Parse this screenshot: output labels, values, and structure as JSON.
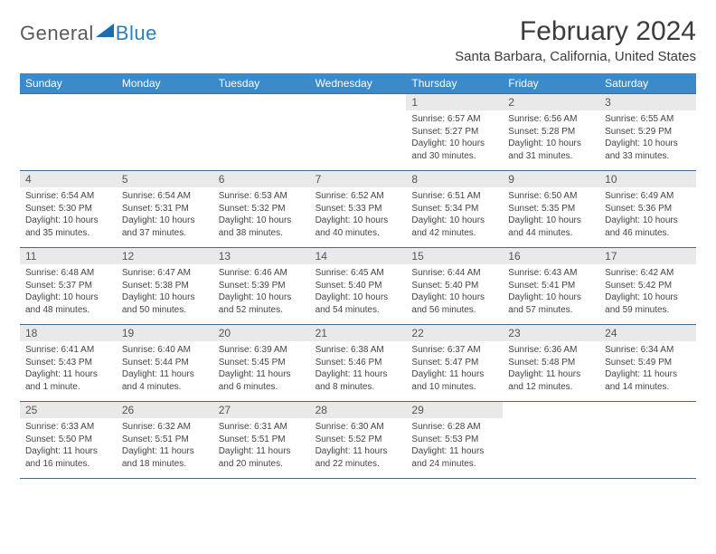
{
  "logo": {
    "part1": "General",
    "part2": "Blue"
  },
  "title": "February 2024",
  "location": "Santa Barbara, California, United States",
  "header_bg": "#3b8bca",
  "daynum_bg": "#e9e9e9",
  "border_color": "#4a6a88",
  "day_names": [
    "Sunday",
    "Monday",
    "Tuesday",
    "Wednesday",
    "Thursday",
    "Friday",
    "Saturday"
  ],
  "weeks": [
    [
      {
        "n": "",
        "sr": "",
        "ss": "",
        "dl": ""
      },
      {
        "n": "",
        "sr": "",
        "ss": "",
        "dl": ""
      },
      {
        "n": "",
        "sr": "",
        "ss": "",
        "dl": ""
      },
      {
        "n": "",
        "sr": "",
        "ss": "",
        "dl": ""
      },
      {
        "n": "1",
        "sr": "Sunrise: 6:57 AM",
        "ss": "Sunset: 5:27 PM",
        "dl": "Daylight: 10 hours and 30 minutes."
      },
      {
        "n": "2",
        "sr": "Sunrise: 6:56 AM",
        "ss": "Sunset: 5:28 PM",
        "dl": "Daylight: 10 hours and 31 minutes."
      },
      {
        "n": "3",
        "sr": "Sunrise: 6:55 AM",
        "ss": "Sunset: 5:29 PM",
        "dl": "Daylight: 10 hours and 33 minutes."
      }
    ],
    [
      {
        "n": "4",
        "sr": "Sunrise: 6:54 AM",
        "ss": "Sunset: 5:30 PM",
        "dl": "Daylight: 10 hours and 35 minutes."
      },
      {
        "n": "5",
        "sr": "Sunrise: 6:54 AM",
        "ss": "Sunset: 5:31 PM",
        "dl": "Daylight: 10 hours and 37 minutes."
      },
      {
        "n": "6",
        "sr": "Sunrise: 6:53 AM",
        "ss": "Sunset: 5:32 PM",
        "dl": "Daylight: 10 hours and 38 minutes."
      },
      {
        "n": "7",
        "sr": "Sunrise: 6:52 AM",
        "ss": "Sunset: 5:33 PM",
        "dl": "Daylight: 10 hours and 40 minutes."
      },
      {
        "n": "8",
        "sr": "Sunrise: 6:51 AM",
        "ss": "Sunset: 5:34 PM",
        "dl": "Daylight: 10 hours and 42 minutes."
      },
      {
        "n": "9",
        "sr": "Sunrise: 6:50 AM",
        "ss": "Sunset: 5:35 PM",
        "dl": "Daylight: 10 hours and 44 minutes."
      },
      {
        "n": "10",
        "sr": "Sunrise: 6:49 AM",
        "ss": "Sunset: 5:36 PM",
        "dl": "Daylight: 10 hours and 46 minutes."
      }
    ],
    [
      {
        "n": "11",
        "sr": "Sunrise: 6:48 AM",
        "ss": "Sunset: 5:37 PM",
        "dl": "Daylight: 10 hours and 48 minutes."
      },
      {
        "n": "12",
        "sr": "Sunrise: 6:47 AM",
        "ss": "Sunset: 5:38 PM",
        "dl": "Daylight: 10 hours and 50 minutes."
      },
      {
        "n": "13",
        "sr": "Sunrise: 6:46 AM",
        "ss": "Sunset: 5:39 PM",
        "dl": "Daylight: 10 hours and 52 minutes."
      },
      {
        "n": "14",
        "sr": "Sunrise: 6:45 AM",
        "ss": "Sunset: 5:40 PM",
        "dl": "Daylight: 10 hours and 54 minutes."
      },
      {
        "n": "15",
        "sr": "Sunrise: 6:44 AM",
        "ss": "Sunset: 5:40 PM",
        "dl": "Daylight: 10 hours and 56 minutes."
      },
      {
        "n": "16",
        "sr": "Sunrise: 6:43 AM",
        "ss": "Sunset: 5:41 PM",
        "dl": "Daylight: 10 hours and 57 minutes."
      },
      {
        "n": "17",
        "sr": "Sunrise: 6:42 AM",
        "ss": "Sunset: 5:42 PM",
        "dl": "Daylight: 10 hours and 59 minutes."
      }
    ],
    [
      {
        "n": "18",
        "sr": "Sunrise: 6:41 AM",
        "ss": "Sunset: 5:43 PM",
        "dl": "Daylight: 11 hours and 1 minute."
      },
      {
        "n": "19",
        "sr": "Sunrise: 6:40 AM",
        "ss": "Sunset: 5:44 PM",
        "dl": "Daylight: 11 hours and 4 minutes."
      },
      {
        "n": "20",
        "sr": "Sunrise: 6:39 AM",
        "ss": "Sunset: 5:45 PM",
        "dl": "Daylight: 11 hours and 6 minutes."
      },
      {
        "n": "21",
        "sr": "Sunrise: 6:38 AM",
        "ss": "Sunset: 5:46 PM",
        "dl": "Daylight: 11 hours and 8 minutes."
      },
      {
        "n": "22",
        "sr": "Sunrise: 6:37 AM",
        "ss": "Sunset: 5:47 PM",
        "dl": "Daylight: 11 hours and 10 minutes."
      },
      {
        "n": "23",
        "sr": "Sunrise: 6:36 AM",
        "ss": "Sunset: 5:48 PM",
        "dl": "Daylight: 11 hours and 12 minutes."
      },
      {
        "n": "24",
        "sr": "Sunrise: 6:34 AM",
        "ss": "Sunset: 5:49 PM",
        "dl": "Daylight: 11 hours and 14 minutes."
      }
    ],
    [
      {
        "n": "25",
        "sr": "Sunrise: 6:33 AM",
        "ss": "Sunset: 5:50 PM",
        "dl": "Daylight: 11 hours and 16 minutes."
      },
      {
        "n": "26",
        "sr": "Sunrise: 6:32 AM",
        "ss": "Sunset: 5:51 PM",
        "dl": "Daylight: 11 hours and 18 minutes."
      },
      {
        "n": "27",
        "sr": "Sunrise: 6:31 AM",
        "ss": "Sunset: 5:51 PM",
        "dl": "Daylight: 11 hours and 20 minutes."
      },
      {
        "n": "28",
        "sr": "Sunrise: 6:30 AM",
        "ss": "Sunset: 5:52 PM",
        "dl": "Daylight: 11 hours and 22 minutes."
      },
      {
        "n": "29",
        "sr": "Sunrise: 6:28 AM",
        "ss": "Sunset: 5:53 PM",
        "dl": "Daylight: 11 hours and 24 minutes."
      },
      {
        "n": "",
        "sr": "",
        "ss": "",
        "dl": ""
      },
      {
        "n": "",
        "sr": "",
        "ss": "",
        "dl": ""
      }
    ]
  ]
}
